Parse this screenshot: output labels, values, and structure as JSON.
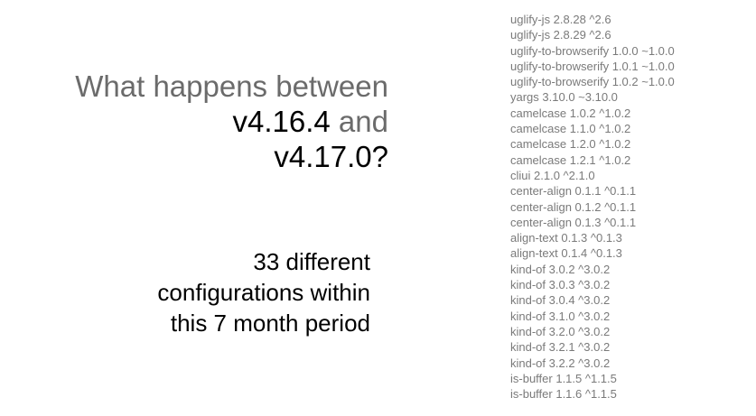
{
  "headline": {
    "line1": "What happens between",
    "line2_version": "v4.16.4",
    "line2_and": " and",
    "line3": "v4.17.0?"
  },
  "subtext": {
    "line1": "33 different",
    "line2": "configurations within",
    "line3": "this 7 month period"
  },
  "dependencies": [
    "uglify-js 2.8.28 ^2.6",
    "uglify-js 2.8.29 ^2.6",
    "uglify-to-browserify 1.0.0 ~1.0.0",
    "uglify-to-browserify 1.0.1 ~1.0.0",
    "uglify-to-browserify 1.0.2 ~1.0.0",
    "yargs 3.10.0 ~3.10.0",
    "camelcase 1.0.2 ^1.0.2",
    "camelcase 1.1.0 ^1.0.2",
    "camelcase 1.2.0 ^1.0.2",
    "camelcase 1.2.1 ^1.0.2",
    "cliui 2.1.0 ^2.1.0",
    "center-align 0.1.1 ^0.1.1",
    "center-align 0.1.2 ^0.1.1",
    "center-align 0.1.3 ^0.1.1",
    "align-text 0.1.3 ^0.1.3",
    "align-text 0.1.4 ^0.1.3",
    "kind-of 3.0.2 ^3.0.2",
    "kind-of 3.0.3 ^3.0.2",
    "kind-of 3.0.4 ^3.0.2",
    "kind-of 3.1.0 ^3.0.2",
    "kind-of 3.2.0 ^3.0.2",
    "kind-of 3.2.1 ^3.0.2",
    "kind-of 3.2.2 ^3.0.2",
    "is-buffer 1.1.5 ^1.1.5",
    "is-buffer 1.1.6 ^1.1.5"
  ]
}
